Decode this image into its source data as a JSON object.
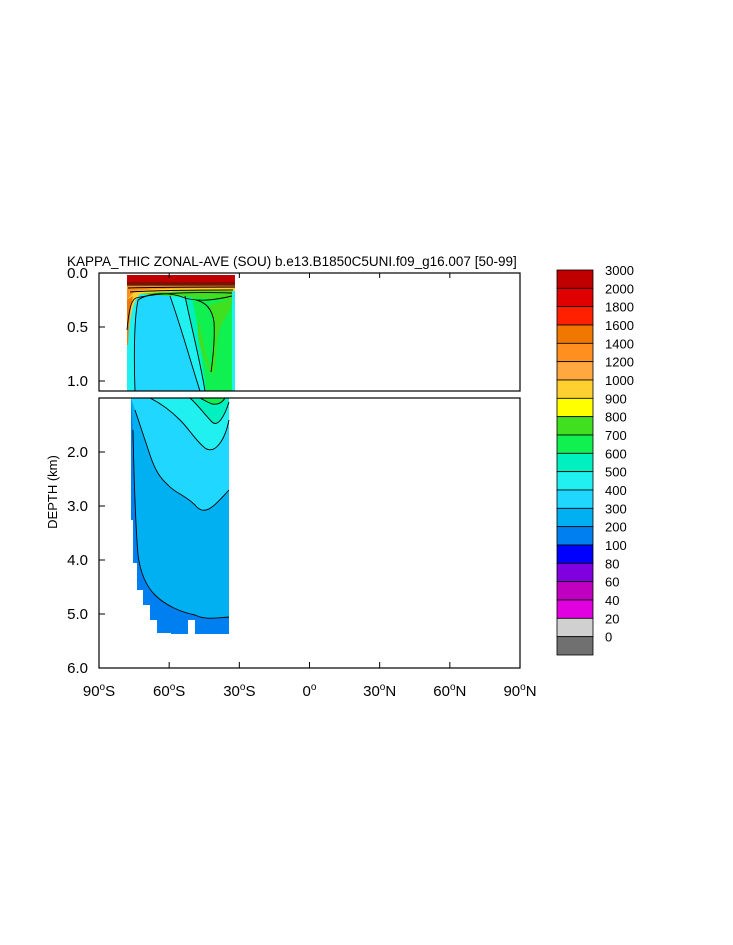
{
  "chart_data": {
    "type": "heatmap",
    "title": "KAPPA_THIC ZONAL-AVE (SOU) b.e13.B1850C5UNI.f09_g16.007 [50-99]",
    "ylabel": "DEPTH (km)",
    "xlim": [
      -90,
      90
    ],
    "upper_ylim": [
      0.0,
      1.0
    ],
    "lower_ylim": [
      1.0,
      6.0
    ],
    "upper_yticks": [
      "0.0",
      "0.5",
      "1.0"
    ],
    "lower_yticks": [
      "2.0",
      "3.0",
      "4.0",
      "5.0",
      "6.0"
    ],
    "xticks": [
      {
        "value": -90,
        "num": "90",
        "hemi": "S"
      },
      {
        "value": -60,
        "num": "60",
        "hemi": "S"
      },
      {
        "value": -30,
        "num": "30",
        "hemi": "S"
      },
      {
        "value": 0,
        "num": "0",
        "hemi": ""
      },
      {
        "value": 30,
        "num": "30",
        "hemi": "N"
      },
      {
        "value": 60,
        "num": "60",
        "hemi": "N"
      },
      {
        "value": 90,
        "num": "90",
        "hemi": "N"
      }
    ],
    "colorbar": {
      "labels": [
        "3000",
        "2000",
        "1800",
        "1600",
        "1400",
        "1200",
        "1000",
        "900",
        "800",
        "700",
        "600",
        "500",
        "400",
        "300",
        "200",
        "100",
        "80",
        "60",
        "40",
        "20",
        "0"
      ],
      "colors": [
        "#c00000",
        "#e00000",
        "#ff2000",
        "#f07800",
        "#ff9020",
        "#ffa840",
        "#ffd030",
        "#ffff00",
        "#40e020",
        "#10f050",
        "#00f0c0",
        "#20f0f0",
        "#20d8ff",
        "#00b0f0",
        "#0080f0",
        "#0000ff",
        "#8000e0",
        "#c000c0",
        "#e000e0",
        "#d0d0d0",
        "#707070"
      ]
    }
  }
}
